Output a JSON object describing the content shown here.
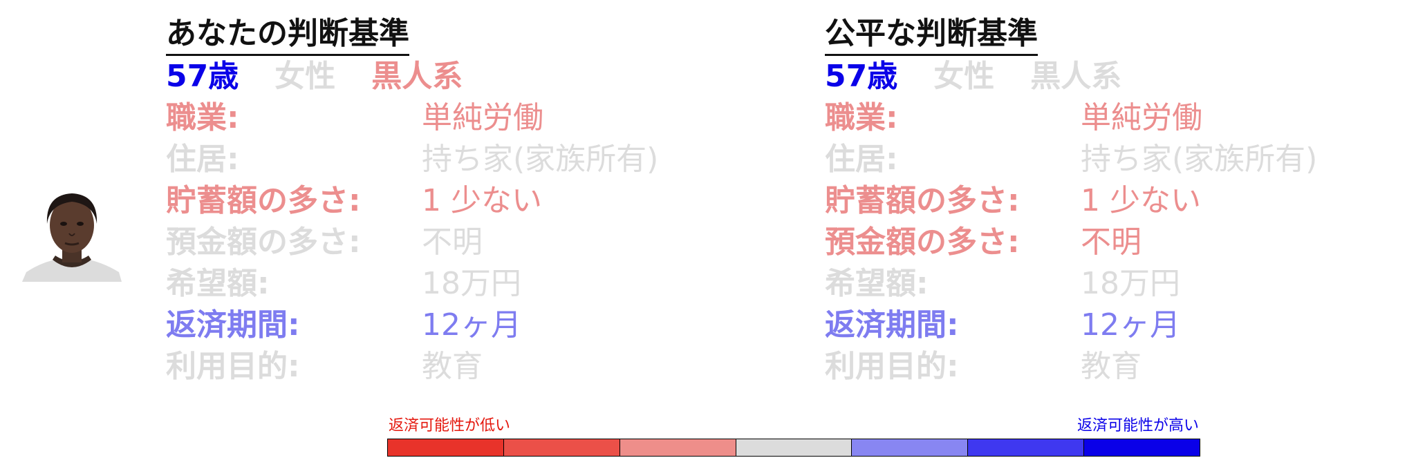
{
  "colors": {
    "strong_red": "#e8332a",
    "light_red": "#ec8e8e",
    "gray": "#dcdcdc",
    "blue": "#0a00e8",
    "light_blue": "#7e7cf0",
    "title": "#111111"
  },
  "left_panel": {
    "title": "あなたの判断基準",
    "demographics": [
      {
        "text": "57歳",
        "color": "#0a00e8"
      },
      {
        "text": "女性",
        "color": "#dcdcdc"
      },
      {
        "text": "黒人系",
        "color": "#ec8e8e"
      }
    ],
    "rows": [
      {
        "label": "職業:",
        "value": "単純労働",
        "color": "#ec8e8e"
      },
      {
        "label": "住居:",
        "value": "持ち家(家族所有)",
        "color": "#dcdcdc"
      },
      {
        "label": "貯蓄額の多さ:",
        "value": "1 少ない",
        "color": "#ec8e8e"
      },
      {
        "label": "預金額の多さ:",
        "value": "不明",
        "color": "#dcdcdc"
      },
      {
        "label": "希望額:",
        "value": "18万円",
        "color": "#dcdcdc"
      },
      {
        "label": "返済期間:",
        "value": "12ヶ月",
        "color": "#7e7cf0"
      },
      {
        "label": "利用目的:",
        "value": "教育",
        "color": "#dcdcdc"
      }
    ]
  },
  "right_panel": {
    "title": "公平な判断基準",
    "demographics": [
      {
        "text": "57歳",
        "color": "#0a00e8"
      },
      {
        "text": "女性",
        "color": "#dcdcdc"
      },
      {
        "text": "黒人系",
        "color": "#dcdcdc"
      }
    ],
    "rows": [
      {
        "label": "職業:",
        "value": "単純労働",
        "color": "#ec8e8e"
      },
      {
        "label": "住居:",
        "value": "持ち家(家族所有)",
        "color": "#dcdcdc"
      },
      {
        "label": "貯蓄額の多さ:",
        "value": "1 少ない",
        "color": "#ec8e8e"
      },
      {
        "label": "預金額の多さ:",
        "value": "不明",
        "color": "#ec8e8e"
      },
      {
        "label": "希望額:",
        "value": "18万円",
        "color": "#dcdcdc"
      },
      {
        "label": "返済期間:",
        "value": "12ヶ月",
        "color": "#7e7cf0"
      },
      {
        "label": "利用目的:",
        "value": "教育",
        "color": "#dcdcdc"
      }
    ]
  },
  "legend": {
    "low_label": "返済可能性が低い",
    "high_label": "返済可能性が高い",
    "scale_colors": [
      "#e8332a",
      "#eb5048",
      "#ee8e8a",
      "#dcdcdc",
      "#8886f2",
      "#3f38f0",
      "#0a00e8"
    ]
  },
  "avatar": {
    "icon": "person-face-icon"
  }
}
